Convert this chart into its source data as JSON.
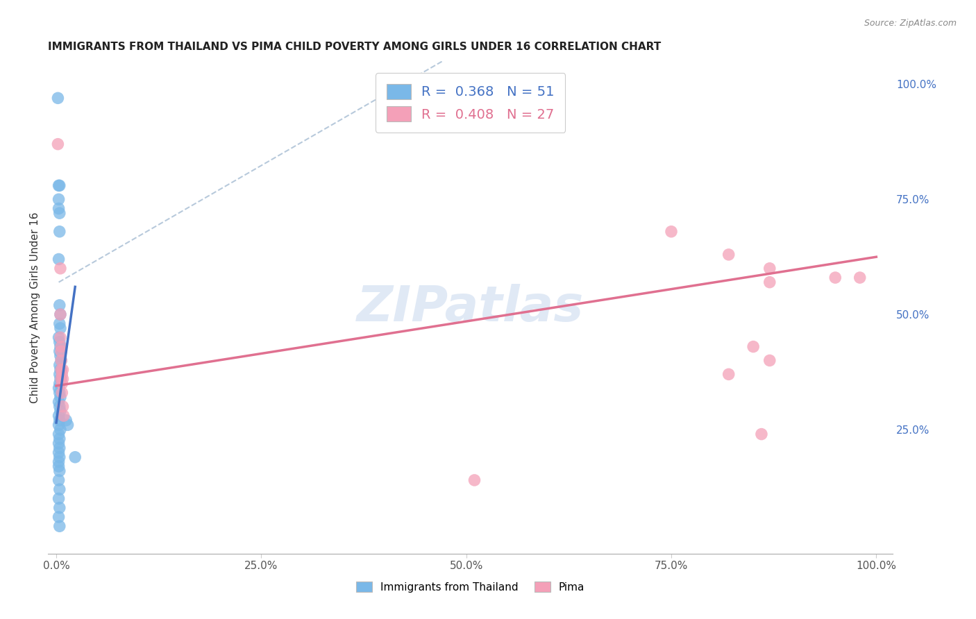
{
  "title": "IMMIGRANTS FROM THAILAND VS PIMA CHILD POVERTY AMONG GIRLS UNDER 16 CORRELATION CHART",
  "source": "Source: ZipAtlas.com",
  "ylabel": "Child Poverty Among Girls Under 16",
  "legend_label1": "Immigrants from Thailand",
  "legend_label2": "Pima",
  "r1": 0.368,
  "n1": 51,
  "r2": 0.408,
  "n2": 27,
  "color_blue": "#7ab8e8",
  "color_pink": "#f4a0b8",
  "color_blue_line": "#4472c4",
  "color_pink_line": "#e07090",
  "color_dashed": "#b0c4d8",
  "watermark": "ZIPatlas",
  "blue_points": [
    [
      0.002,
      0.97
    ],
    [
      0.003,
      0.73
    ],
    [
      0.004,
      0.72
    ],
    [
      0.003,
      0.78
    ],
    [
      0.004,
      0.68
    ],
    [
      0.003,
      0.62
    ],
    [
      0.004,
      0.78
    ],
    [
      0.003,
      0.75
    ],
    [
      0.004,
      0.52
    ],
    [
      0.005,
      0.5
    ],
    [
      0.004,
      0.48
    ],
    [
      0.005,
      0.47
    ],
    [
      0.003,
      0.45
    ],
    [
      0.004,
      0.44
    ],
    [
      0.005,
      0.43
    ],
    [
      0.004,
      0.42
    ],
    [
      0.005,
      0.41
    ],
    [
      0.006,
      0.4
    ],
    [
      0.004,
      0.39
    ],
    [
      0.005,
      0.38
    ],
    [
      0.004,
      0.37
    ],
    [
      0.005,
      0.36
    ],
    [
      0.004,
      0.35
    ],
    [
      0.003,
      0.34
    ],
    [
      0.004,
      0.33
    ],
    [
      0.005,
      0.32
    ],
    [
      0.003,
      0.31
    ],
    [
      0.004,
      0.3
    ],
    [
      0.005,
      0.29
    ],
    [
      0.003,
      0.28
    ],
    [
      0.004,
      0.27
    ],
    [
      0.003,
      0.26
    ],
    [
      0.005,
      0.25
    ],
    [
      0.003,
      0.24
    ],
    [
      0.004,
      0.23
    ],
    [
      0.003,
      0.22
    ],
    [
      0.004,
      0.21
    ],
    [
      0.003,
      0.2
    ],
    [
      0.004,
      0.19
    ],
    [
      0.003,
      0.18
    ],
    [
      0.012,
      0.27
    ],
    [
      0.014,
      0.26
    ],
    [
      0.003,
      0.17
    ],
    [
      0.004,
      0.16
    ],
    [
      0.003,
      0.14
    ],
    [
      0.004,
      0.12
    ],
    [
      0.003,
      0.1
    ],
    [
      0.004,
      0.08
    ],
    [
      0.003,
      0.06
    ],
    [
      0.004,
      0.04
    ],
    [
      0.023,
      0.19
    ]
  ],
  "pink_points": [
    [
      0.002,
      0.87
    ],
    [
      0.005,
      0.6
    ],
    [
      0.005,
      0.5
    ],
    [
      0.005,
      0.45
    ],
    [
      0.006,
      0.43
    ],
    [
      0.006,
      0.42
    ],
    [
      0.006,
      0.4
    ],
    [
      0.006,
      0.38
    ],
    [
      0.006,
      0.36
    ],
    [
      0.007,
      0.37
    ],
    [
      0.007,
      0.35
    ],
    [
      0.007,
      0.33
    ],
    [
      0.008,
      0.38
    ],
    [
      0.008,
      0.36
    ],
    [
      0.008,
      0.3
    ],
    [
      0.009,
      0.28
    ],
    [
      0.51,
      0.14
    ],
    [
      0.75,
      0.68
    ],
    [
      0.82,
      0.63
    ],
    [
      0.87,
      0.6
    ],
    [
      0.87,
      0.57
    ],
    [
      0.85,
      0.43
    ],
    [
      0.87,
      0.4
    ],
    [
      0.82,
      0.37
    ],
    [
      0.86,
      0.24
    ],
    [
      0.95,
      0.58
    ],
    [
      0.98,
      0.58
    ]
  ],
  "blue_trendline_solid": [
    [
      0.0,
      0.265
    ],
    [
      0.023,
      0.56
    ]
  ],
  "blue_trendline_dashed": [
    [
      0.003,
      0.57
    ],
    [
      0.5,
      1.08
    ]
  ],
  "pink_trendline": [
    [
      0.0,
      0.345
    ],
    [
      1.0,
      0.625
    ]
  ],
  "xlim": [
    0.0,
    1.0
  ],
  "ylim": [
    0.0,
    1.05
  ],
  "ytick_values": [
    0.25,
    0.5,
    0.75,
    1.0
  ],
  "ytick_labels": [
    "25.0%",
    "50.0%",
    "75.0%",
    "100.0%"
  ],
  "xtick_values": [
    0.0,
    0.25,
    0.5,
    0.75,
    1.0
  ],
  "xtick_labels": [
    "0.0%",
    "25.0%",
    "50.0%",
    "75.0%",
    "100.0%"
  ]
}
